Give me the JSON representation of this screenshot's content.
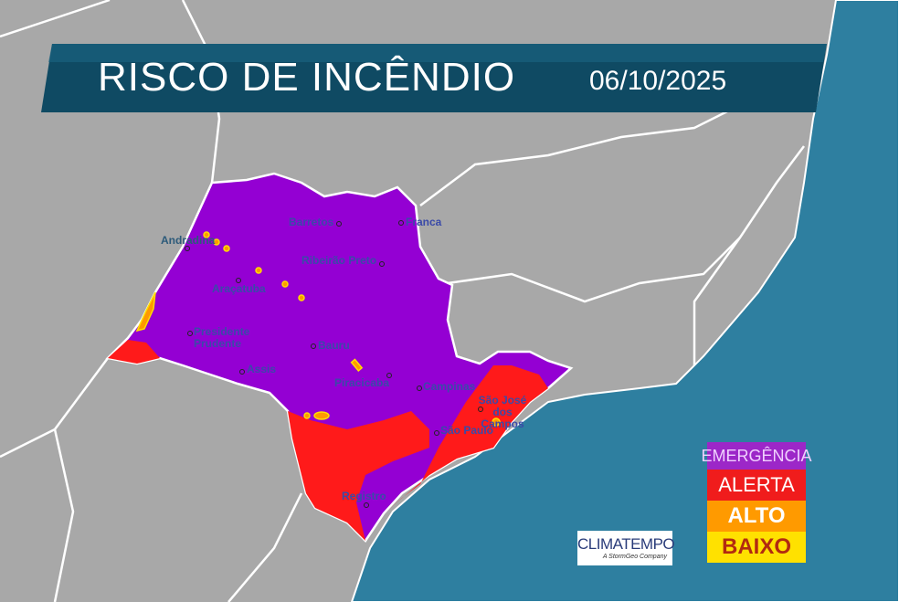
{
  "header": {
    "title": "RISCO DE INCÊNDIO",
    "date": "06/10/2025"
  },
  "colors": {
    "emergencia": "#9400d3",
    "alerta": "#ff1a1a",
    "alto": "#ff9900",
    "baixo": "#ffdd00",
    "ocean": "#2e7fa0",
    "land": "#a8a8a8",
    "banner": "#0f4a63"
  },
  "cities": [
    {
      "name": "Barretos"
    },
    {
      "name": "Franca"
    },
    {
      "name": "Andradina"
    },
    {
      "name": "Ribeirão Preto"
    },
    {
      "name": "Araçatuba"
    },
    {
      "name": "Presidente Prudente"
    },
    {
      "name": "Bauru"
    },
    {
      "name": "Assis"
    },
    {
      "name": "Piracicaba"
    },
    {
      "name": "Campinas"
    },
    {
      "name": "São José dos Campos"
    },
    {
      "name": "São Paulo"
    },
    {
      "name": "Registro"
    }
  ],
  "legend": [
    {
      "label": "EMERGÊNCIA",
      "color": "#9c27c8"
    },
    {
      "label": "ALERTA",
      "color": "#f01c1c"
    },
    {
      "label": "ALTO",
      "color": "#ff9a00"
    },
    {
      "label": "BAIXO",
      "color": "#ffe100"
    }
  ],
  "logo": {
    "name": "CLIMATEMPO",
    "tagline": "A StormGeo Company"
  }
}
